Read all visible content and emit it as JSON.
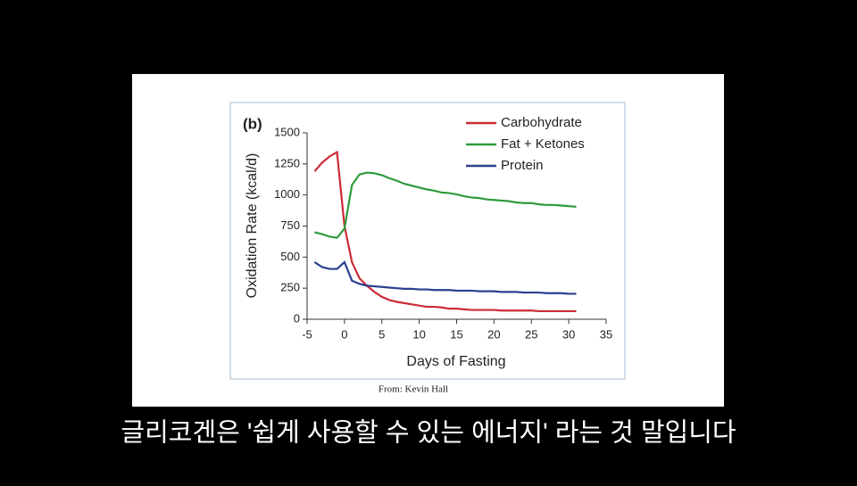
{
  "chart_data": {
    "type": "line",
    "panel_label": "(b)",
    "xlabel": "Days of Fasting",
    "ylabel": "Oxidation Rate (kcal/d)",
    "x": [
      -4,
      -3,
      -2,
      -1,
      0,
      1,
      2,
      3,
      4,
      5,
      6,
      7,
      8,
      9,
      10,
      11,
      12,
      13,
      14,
      15,
      16,
      17,
      18,
      19,
      20,
      21,
      22,
      23,
      24,
      25,
      26,
      27,
      28,
      29,
      30,
      31
    ],
    "series": [
      {
        "name": "Carbohydrate",
        "color": "#cc2b36",
        "values": [
          1190,
          1260,
          1310,
          1345,
          750,
          460,
          330,
          270,
          220,
          180,
          155,
          140,
          130,
          120,
          110,
          100,
          100,
          95,
          85,
          85,
          80,
          75,
          75,
          75,
          75,
          70,
          70,
          70,
          70,
          70,
          65,
          65,
          65,
          65,
          65,
          65
        ]
      },
      {
        "name": "Fat + Ketones",
        "color": "#2e9a3a",
        "values": [
          700,
          685,
          665,
          655,
          730,
          1080,
          1165,
          1180,
          1175,
          1160,
          1135,
          1115,
          1090,
          1075,
          1060,
          1045,
          1035,
          1020,
          1015,
          1005,
          990,
          980,
          975,
          965,
          960,
          955,
          950,
          940,
          935,
          935,
          925,
          920,
          920,
          915,
          910,
          905
        ]
      },
      {
        "name": "Protein",
        "color": "#2c3f8f",
        "values": [
          460,
          420,
          405,
          405,
          460,
          310,
          285,
          270,
          265,
          260,
          255,
          250,
          245,
          245,
          240,
          240,
          235,
          235,
          235,
          230,
          230,
          230,
          225,
          225,
          225,
          220,
          220,
          220,
          215,
          215,
          215,
          210,
          210,
          210,
          205,
          205
        ]
      }
    ],
    "xlim": [
      -5,
      35
    ],
    "xticks": [
      -5,
      0,
      5,
      10,
      15,
      20,
      25,
      30,
      35
    ],
    "ylim": [
      0,
      1500
    ],
    "yticks": [
      0,
      250,
      500,
      750,
      1000,
      1250,
      1500
    ],
    "legend": "top-right",
    "source": "From: Kevin Hall"
  },
  "caption": "글리코겐은 '쉽게 사용할 수 있는 에너지' 라는 것 말입니다"
}
